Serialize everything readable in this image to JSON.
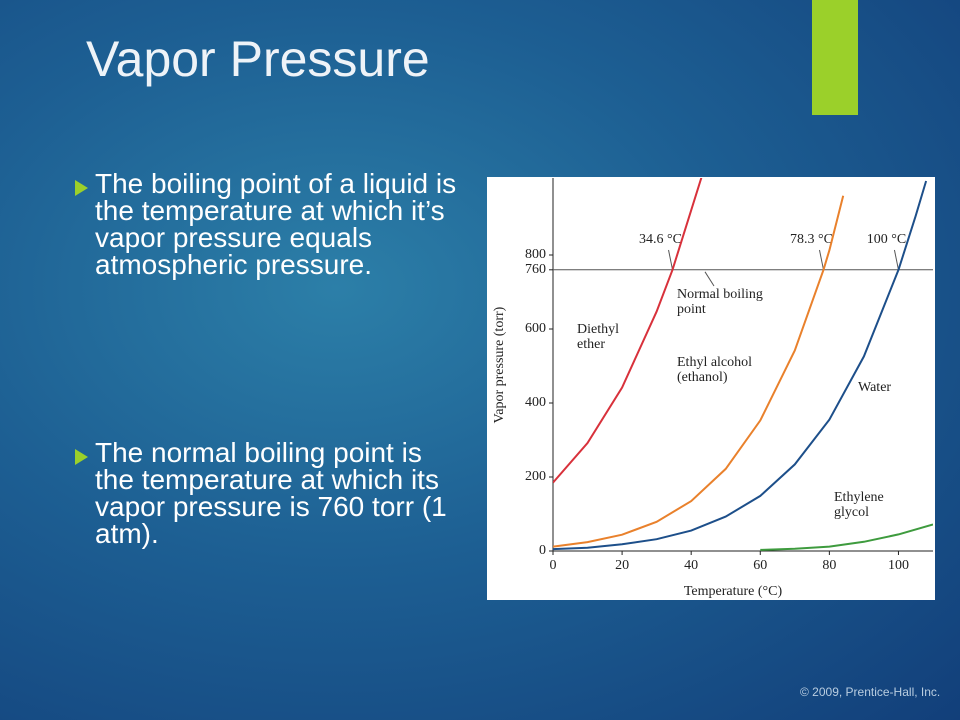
{
  "slide": {
    "title": "Vapor Pressure",
    "bullets": [
      "The boiling point of a liquid is the temperature at which it’s vapor pressure equals atmospheric pressure.",
      "The normal boiling point is the temperature at which its vapor pressure is 760 torr (1 atm)."
    ],
    "footer": "© 2009, Prentice-Hall, Inc."
  },
  "chart_data": {
    "type": "line",
    "xlabel": "Temperature (°C)",
    "ylabel": "Vapor pressure (torr)",
    "xlim": [
      0,
      110
    ],
    "ylim": [
      0,
      1000
    ],
    "xticks": [
      0,
      20,
      40,
      60,
      80,
      100
    ],
    "yticks": [
      0,
      200,
      400,
      600,
      760,
      800
    ],
    "hline": 760,
    "hline_label": "Normal boiling point",
    "boiling_points": [
      {
        "value": 34.6,
        "label": "34.6 °C"
      },
      {
        "value": 78.3,
        "label": "78.3 °C"
      },
      {
        "value": 100,
        "label": "100 °C"
      }
    ],
    "series": [
      {
        "name": "Diethyl ether",
        "color": "#d8313b",
        "x": [
          0,
          10,
          20,
          30,
          34.6,
          40,
          43
        ],
        "values": [
          185,
          292,
          442,
          647,
          760,
          921,
          1010
        ]
      },
      {
        "name": "Ethyl alcohol (ethanol)",
        "color": "#e9812c",
        "x": [
          0,
          10,
          20,
          30,
          40,
          50,
          60,
          70,
          78.3,
          80,
          84
        ],
        "values": [
          12,
          24,
          44,
          79,
          135,
          222,
          353,
          542,
          760,
          813,
          960
        ]
      },
      {
        "name": "Water",
        "color": "#1d4f8a",
        "x": [
          0,
          10,
          20,
          30,
          40,
          50,
          60,
          70,
          80,
          90,
          100,
          105,
          108
        ],
        "values": [
          5,
          9,
          18,
          32,
          55,
          93,
          149,
          234,
          355,
          526,
          760,
          906,
          1000
        ]
      },
      {
        "name": "Ethylene glycol",
        "color": "#3e9b3e",
        "x": [
          60,
          70,
          80,
          90,
          100,
          110
        ],
        "values": [
          3,
          6,
          12,
          25,
          45,
          72
        ]
      }
    ]
  }
}
